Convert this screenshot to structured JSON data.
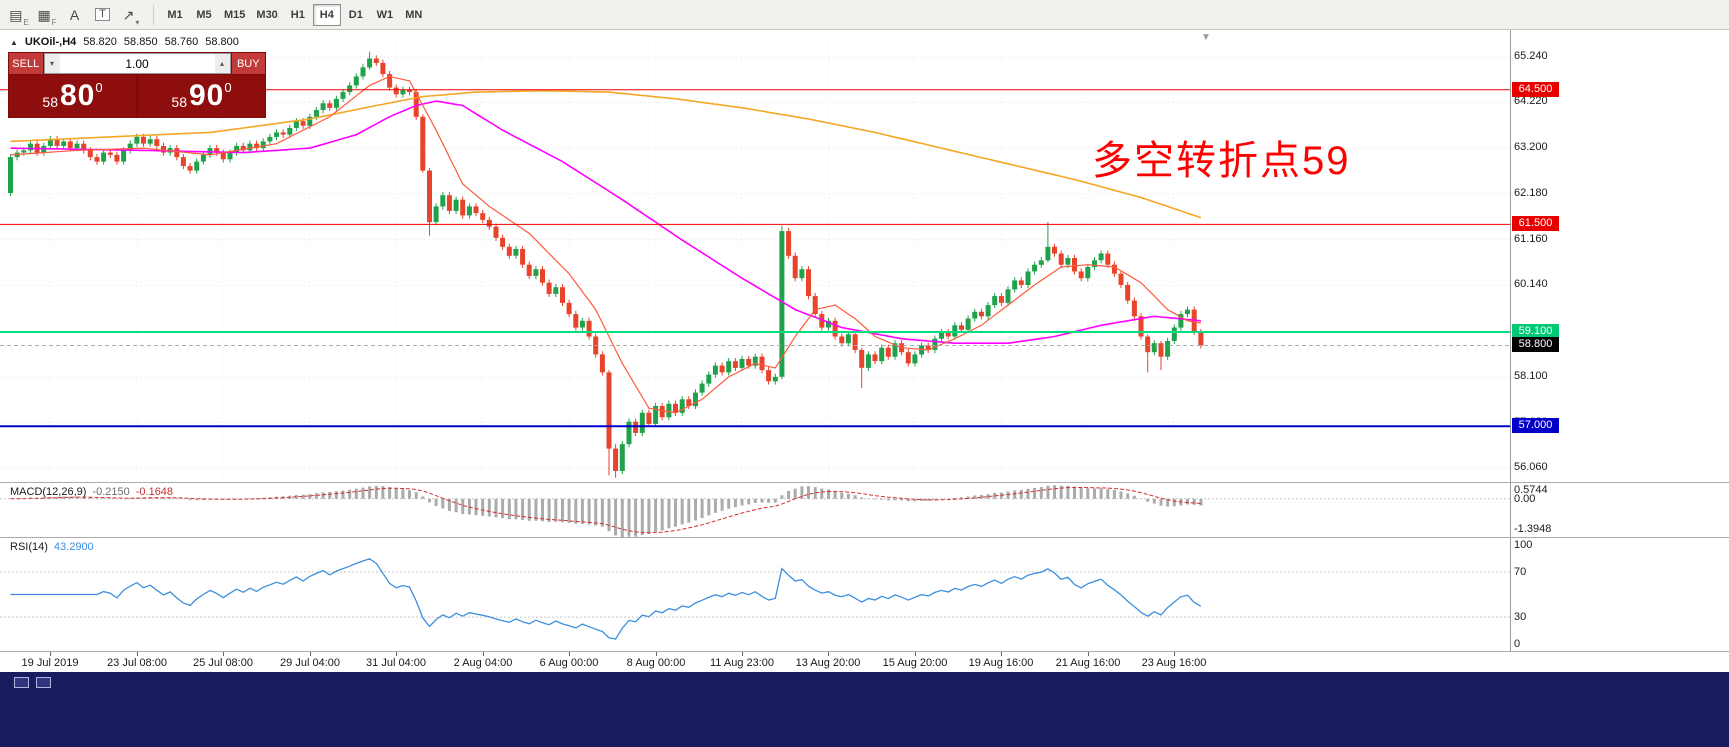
{
  "toolbar": {
    "icons": [
      {
        "name": "charts-group-icon",
        "glyph": "▤",
        "sub": "E"
      },
      {
        "name": "indicators-group-icon",
        "glyph": "▦",
        "sub": "F"
      },
      {
        "name": "font-tool-icon",
        "glyph": "A",
        "sub": ""
      },
      {
        "name": "text-tool-icon",
        "glyph": "T",
        "sub": ""
      },
      {
        "name": "drawing-tool-icon",
        "glyph": "↗",
        "sub": "▾"
      }
    ],
    "timeframes": [
      "M1",
      "M5",
      "M15",
      "M30",
      "H1",
      "H4",
      "D1",
      "W1",
      "MN"
    ],
    "active_timeframe": "H4"
  },
  "chart": {
    "title_symbol": "UKOil-,H4",
    "panel_toggle_glyph": "▲",
    "shift_marker_glyph": "▼",
    "ohlc": {
      "o": "58.820",
      "h": "58.850",
      "l": "58.760",
      "c": "58.800"
    },
    "annotation": "多空转折点59",
    "trade_panel": {
      "sell_label": "SELL",
      "buy_label": "BUY",
      "volume": "1.00",
      "spin_down": "▾",
      "spin_up": "▴",
      "sell_price_small": "58",
      "sell_price_big": "80",
      "sell_price_sup": "0",
      "buy_price_small": "58",
      "buy_price_big": "90",
      "buy_price_sup": "0"
    }
  },
  "macd_panel": {
    "label": "MACD(12,26,9)",
    "value_main": "-0.2150",
    "value_signal": "-0.1648",
    "axis": [
      "0.5744",
      "0.00",
      "-1.3948"
    ]
  },
  "rsi_panel": {
    "label": "RSI(14)",
    "value": "43.2900",
    "axis_top": "100",
    "axis_70": "70",
    "axis_30": "30",
    "axis_bottom": "0"
  },
  "time_axis": {
    "labels": [
      "19 Jul 2019",
      "23 Jul 08:00",
      "25 Jul 08:00",
      "29 Jul 04:00",
      "31 Jul 04:00",
      "2 Aug 04:00",
      "6 Aug 00:00",
      "8 Aug 00:00",
      "11 Aug 23:00",
      "13 Aug 20:00",
      "15 Aug 20:00",
      "19 Aug 16:00",
      "21 Aug 16:00",
      "23 Aug 16:00"
    ],
    "tick_indices": [
      6,
      19,
      32,
      45,
      58,
      71,
      84,
      97,
      110,
      123,
      136,
      149,
      162,
      175
    ]
  },
  "chart_data": {
    "type": "candlestick",
    "symbol": "UKOil-",
    "period": "H4",
    "price_range": [
      55.8,
      65.5
    ],
    "up_color": "#1FA24A",
    "down_color": "#E8432B",
    "open_first": 62.2,
    "closes": [
      63.0,
      63.1,
      63.15,
      63.3,
      63.1,
      63.25,
      63.4,
      63.25,
      63.35,
      63.2,
      63.3,
      63.15,
      63.0,
      62.9,
      63.1,
      63.05,
      62.9,
      63.15,
      63.3,
      63.45,
      63.3,
      63.4,
      63.25,
      63.1,
      63.2,
      63.0,
      62.8,
      62.7,
      62.9,
      63.05,
      63.2,
      63.1,
      62.95,
      63.1,
      63.25,
      63.15,
      63.3,
      63.2,
      63.35,
      63.45,
      63.55,
      63.5,
      63.65,
      63.8,
      63.7,
      63.9,
      64.05,
      64.2,
      64.1,
      64.3,
      64.45,
      64.6,
      64.8,
      65.0,
      65.2,
      65.1,
      64.85,
      64.55,
      64.4,
      64.5,
      64.45,
      63.9,
      62.7,
      61.55,
      61.9,
      62.15,
      61.8,
      62.05,
      61.7,
      61.9,
      61.75,
      61.6,
      61.45,
      61.2,
      61.0,
      60.8,
      60.95,
      60.6,
      60.35,
      60.5,
      60.2,
      59.95,
      60.1,
      59.75,
      59.5,
      59.2,
      59.35,
      59.0,
      58.6,
      58.2,
      56.5,
      56.0,
      56.6,
      57.1,
      56.85,
      57.3,
      57.05,
      57.45,
      57.2,
      57.5,
      57.3,
      57.6,
      57.45,
      57.75,
      57.95,
      58.15,
      58.35,
      58.2,
      58.45,
      58.3,
      58.5,
      58.35,
      58.55,
      58.25,
      58.0,
      58.1,
      61.35,
      60.8,
      60.3,
      60.5,
      59.9,
      59.5,
      59.2,
      59.35,
      59.0,
      58.85,
      59.05,
      58.7,
      58.3,
      58.6,
      58.45,
      58.75,
      58.55,
      58.85,
      58.65,
      58.4,
      58.6,
      58.8,
      58.7,
      58.95,
      59.1,
      59.0,
      59.25,
      59.15,
      59.4,
      59.55,
      59.45,
      59.7,
      59.9,
      59.75,
      60.05,
      60.25,
      60.15,
      60.45,
      60.6,
      60.7,
      61.0,
      60.85,
      60.6,
      60.75,
      60.45,
      60.3,
      60.55,
      60.7,
      60.85,
      60.6,
      60.4,
      60.15,
      59.8,
      59.45,
      59.0,
      58.65,
      58.85,
      58.55,
      58.9,
      59.2,
      59.5,
      59.6,
      59.1,
      58.8
    ],
    "wick_default": 0.07,
    "wick_overrides": {
      "54": [
        0.15,
        0.05
      ],
      "62": [
        0.05,
        0.05
      ],
      "63": [
        0.05,
        0.3
      ],
      "90": [
        0.05,
        0.6
      ],
      "91": [
        0.1,
        0.15
      ],
      "116": [
        0.12,
        0.05
      ],
      "128": [
        0.05,
        0.45
      ],
      "156": [
        0.55,
        0.05
      ],
      "171": [
        0.05,
        0.45
      ],
      "173": [
        0.05,
        0.3
      ]
    },
    "axis_labels": [
      65.24,
      64.22,
      63.2,
      62.18,
      61.16,
      60.14,
      59.12,
      58.1,
      57.08,
      56.06
    ],
    "h_levels": [
      {
        "price": 64.5,
        "color": "#F40000",
        "width": 1,
        "tag": "64.500",
        "tag_bg": "#E80000"
      },
      {
        "price": 61.5,
        "color": "#F40000",
        "width": 1,
        "tag": "61.500",
        "tag_bg": "#E80000"
      },
      {
        "price": 59.1,
        "color": "#00E07E",
        "width": 2,
        "tag": "59.100",
        "tag_bg": "#00C875"
      },
      {
        "price": 57.0,
        "color": "#0000CD",
        "width": 2,
        "tag": "57.000",
        "tag_bg": "#0000C8"
      },
      {
        "price": 58.8,
        "color": "#ADADAD",
        "width": 1,
        "dashed": true,
        "tag": "58.800",
        "tag_bg": "#000000"
      }
    ],
    "ma_lines": [
      {
        "name": "slow-orange",
        "color": "#F5A623",
        "width": 1.6,
        "points": [
          [
            0,
            63.35
          ],
          [
            15,
            63.45
          ],
          [
            30,
            63.55
          ],
          [
            45,
            63.85
          ],
          [
            55,
            64.15
          ],
          [
            62,
            64.35
          ],
          [
            70,
            64.45
          ],
          [
            80,
            64.48
          ],
          [
            90,
            64.45
          ],
          [
            100,
            64.3
          ],
          [
            110,
            64.1
          ],
          [
            120,
            63.85
          ],
          [
            130,
            63.55
          ],
          [
            140,
            63.2
          ],
          [
            150,
            62.85
          ],
          [
            160,
            62.5
          ],
          [
            170,
            62.1
          ],
          [
            179,
            61.65
          ]
        ]
      },
      {
        "name": "medium-magenta",
        "color": "#FF00FF",
        "width": 1.6,
        "points": [
          [
            0,
            63.2
          ],
          [
            20,
            63.15
          ],
          [
            35,
            63.1
          ],
          [
            45,
            63.2
          ],
          [
            52,
            63.5
          ],
          [
            57,
            63.9
          ],
          [
            61,
            64.15
          ],
          [
            64,
            64.25
          ],
          [
            68,
            64.15
          ],
          [
            74,
            63.6
          ],
          [
            83,
            62.9
          ],
          [
            92,
            62.05
          ],
          [
            101,
            61.15
          ],
          [
            110,
            60.3
          ],
          [
            118,
            59.6
          ],
          [
            125,
            59.2
          ],
          [
            134,
            58.95
          ],
          [
            142,
            58.85
          ],
          [
            150,
            58.85
          ],
          [
            157,
            59.0
          ],
          [
            164,
            59.25
          ],
          [
            172,
            59.45
          ],
          [
            179,
            59.35
          ]
        ]
      },
      {
        "name": "fast-red",
        "color": "#FF5A3C",
        "width": 1.2,
        "points": [
          [
            0,
            63.05
          ],
          [
            10,
            63.15
          ],
          [
            20,
            63.2
          ],
          [
            30,
            63.05
          ],
          [
            40,
            63.3
          ],
          [
            48,
            63.9
          ],
          [
            54,
            64.6
          ],
          [
            57,
            64.8
          ],
          [
            60,
            64.7
          ],
          [
            64,
            63.6
          ],
          [
            68,
            62.4
          ],
          [
            72,
            61.9
          ],
          [
            78,
            61.3
          ],
          [
            84,
            60.4
          ],
          [
            88,
            59.6
          ],
          [
            92,
            58.4
          ],
          [
            96,
            57.4
          ],
          [
            100,
            57.3
          ],
          [
            104,
            57.6
          ],
          [
            108,
            58.1
          ],
          [
            112,
            58.4
          ],
          [
            115,
            58.3
          ],
          [
            118,
            59.0
          ],
          [
            121,
            59.6
          ],
          [
            124,
            59.7
          ],
          [
            127,
            59.4
          ],
          [
            130,
            59.0
          ],
          [
            134,
            58.75
          ],
          [
            138,
            58.7
          ],
          [
            142,
            58.95
          ],
          [
            146,
            59.25
          ],
          [
            150,
            59.7
          ],
          [
            154,
            60.15
          ],
          [
            158,
            60.55
          ],
          [
            162,
            60.6
          ],
          [
            166,
            60.55
          ],
          [
            170,
            60.2
          ],
          [
            174,
            59.6
          ],
          [
            177,
            59.35
          ],
          [
            179,
            59.3
          ]
        ]
      }
    ],
    "macd": {
      "fast": 12,
      "slow": 26,
      "signal": 9,
      "hist_color": "#ABABAB",
      "signal_color": "#D23030",
      "axis_max": 0.5744,
      "axis_min": -1.3948
    },
    "rsi": {
      "period": 14,
      "color": "#3E8EDE",
      "levels": [
        70,
        30
      ]
    }
  }
}
